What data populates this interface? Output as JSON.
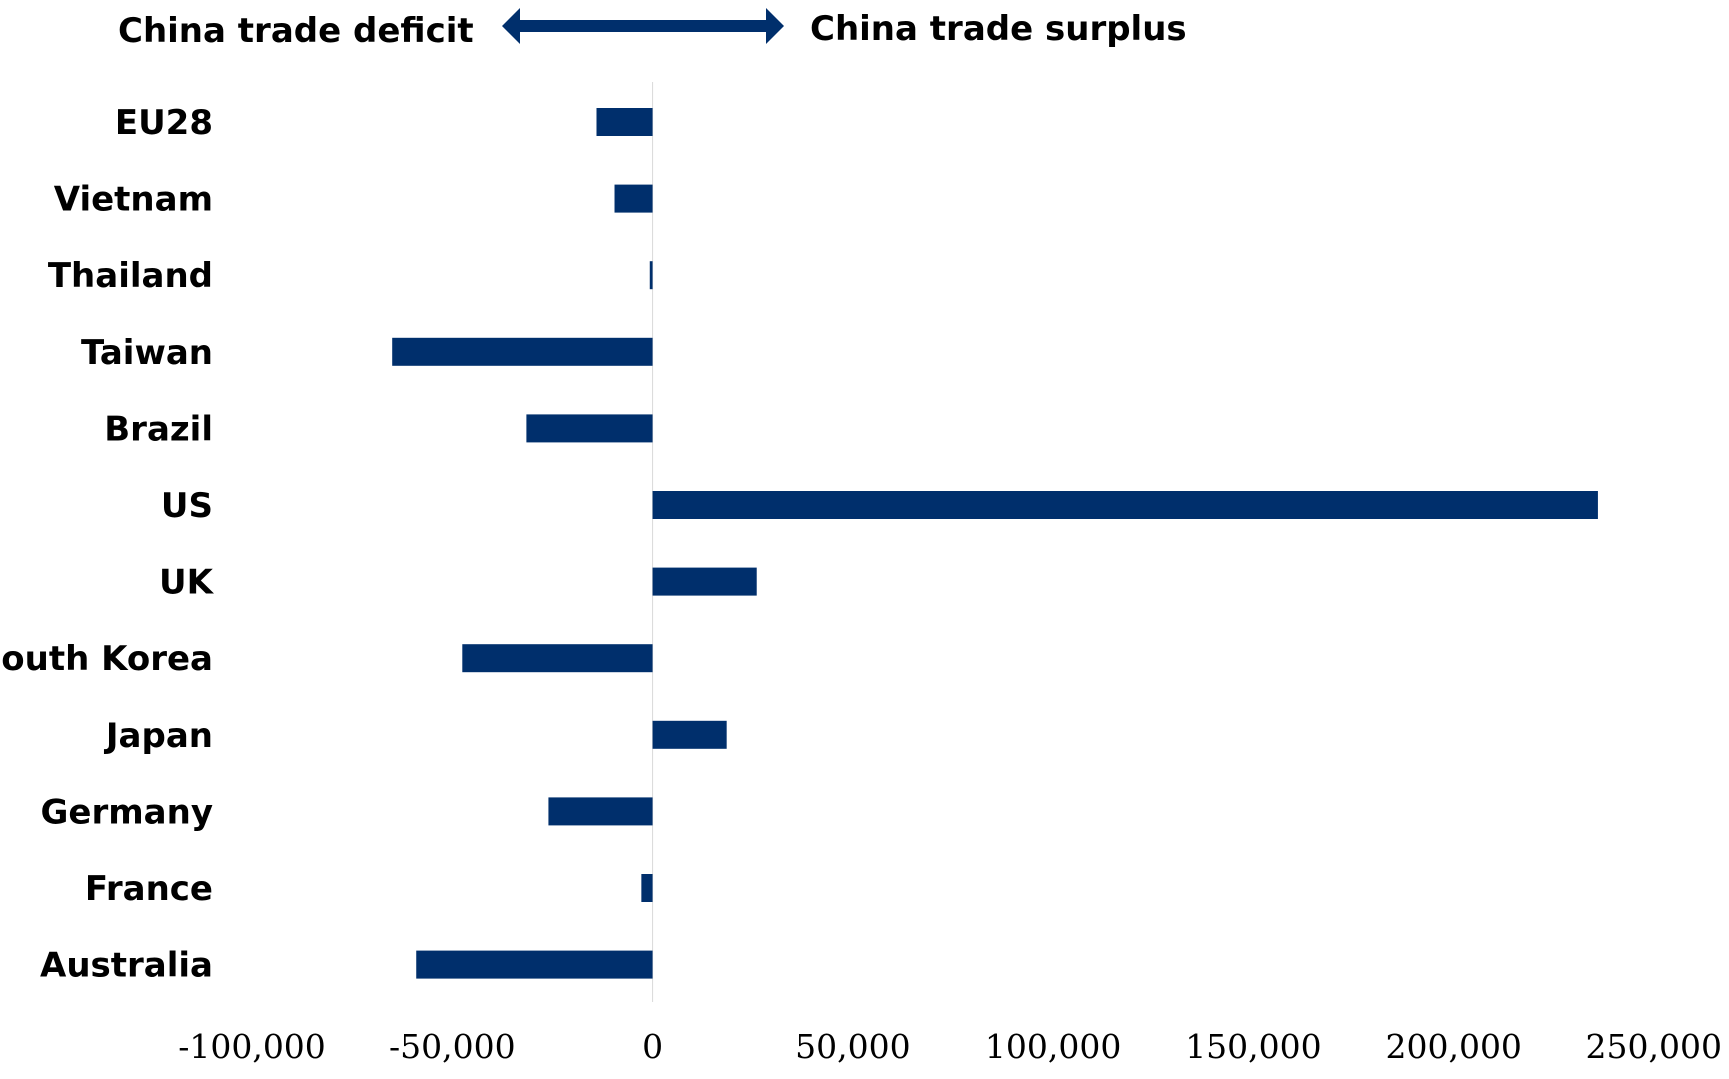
{
  "chart_data": {
    "type": "bar",
    "orientation": "horizontal",
    "categories": [
      "EU28",
      "Vietnam",
      "Thailand",
      "Taiwan",
      "Brazil",
      "US",
      "UK",
      "South Korea",
      "Japan",
      "Germany",
      "France",
      "Australia"
    ],
    "values": [
      -14000,
      -9500,
      -700,
      -65000,
      -31500,
      236000,
      26000,
      -47500,
      18500,
      -26000,
      -2800,
      -59000
    ],
    "xlim": [
      -100000,
      250000
    ],
    "xticks": [
      -100000,
      -50000,
      0,
      50000,
      100000,
      150000,
      200000,
      250000
    ],
    "xtick_labels": [
      "-100,000",
      "-50,000",
      "0",
      "50,000",
      "100,000",
      "150,000",
      "200,000",
      "250,000"
    ],
    "bar_color": "#002f6c",
    "grid": false,
    "annotations": {
      "left": "China trade deficit",
      "right": "China trade surplus",
      "arrow_icon": "double-headed-arrow-icon",
      "arrow_color": "#002f6c"
    }
  }
}
